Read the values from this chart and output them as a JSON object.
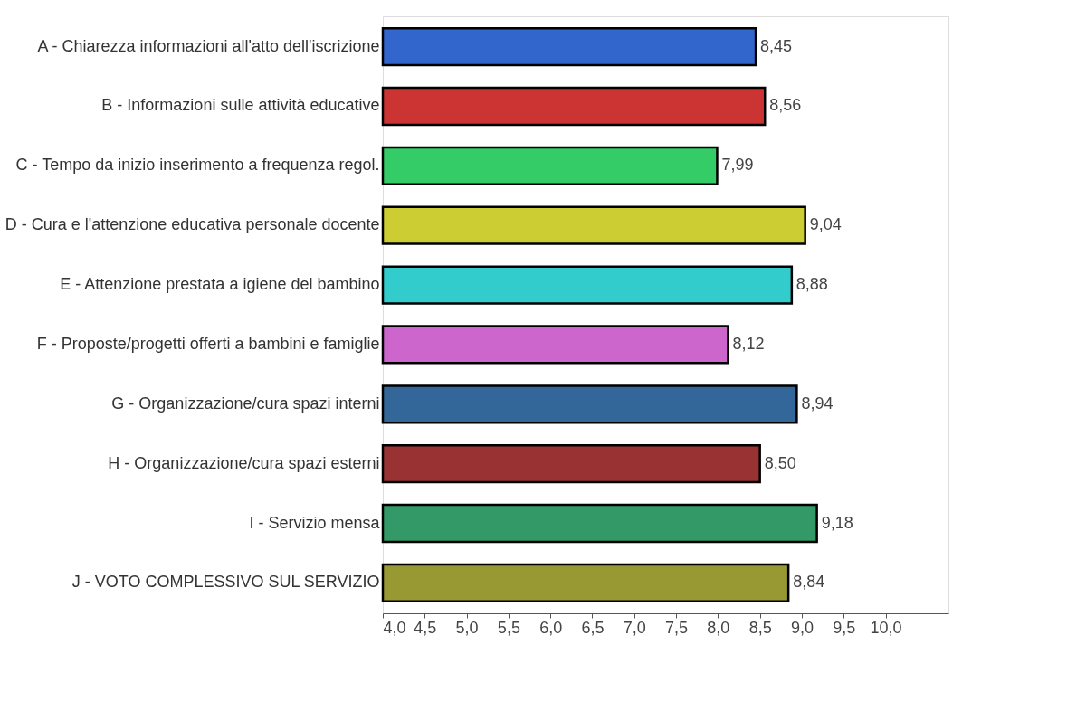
{
  "chart_data": {
    "type": "bar",
    "orientation": "horizontal",
    "categories": [
      "A - Chiarezza informazioni all'atto dell'iscrizione",
      "B - Informazioni sulle attività educative",
      "C - Tempo da inizio inserimento a frequenza regol.",
      "D - Cura e l'attenzione educativa personale docente",
      "E - Attenzione prestata a igiene del bambino",
      "F - Proposte/progetti offerti a bambini e famiglie",
      "G - Organizzazione/cura spazi interni",
      "H - Organizzazione/cura spazi esterni",
      "I - Servizio mensa",
      "J - VOTO COMPLESSIVO SUL SERVIZIO"
    ],
    "values": [
      8.45,
      8.56,
      7.99,
      9.04,
      8.88,
      8.12,
      8.94,
      8.5,
      9.18,
      8.84
    ],
    "value_labels": [
      "8,45",
      "8,56",
      "7,99",
      "9,04",
      "8,88",
      "8,12",
      "8,94",
      "8,50",
      "9,18",
      "8,84"
    ],
    "colors": [
      "#3366cc",
      "#cc3333",
      "#33cc66",
      "#cccc33",
      "#33cccc",
      "#cc66cc",
      "#336699",
      "#993333",
      "#339966",
      "#999933"
    ],
    "xlim": [
      4,
      10.75
    ],
    "xticks": [
      {
        "value": 4,
        "label": "4,0"
      },
      {
        "value": 4.5,
        "label": "4,5"
      },
      {
        "value": 5,
        "label": "5,0"
      },
      {
        "value": 5.5,
        "label": "5,5"
      },
      {
        "value": 6,
        "label": "6,0"
      },
      {
        "value": 6.5,
        "label": "6,5"
      },
      {
        "value": 7,
        "label": "7,0"
      },
      {
        "value": 7.5,
        "label": "7,5"
      },
      {
        "value": 8,
        "label": "8,0"
      },
      {
        "value": 8.5,
        "label": "8,5"
      },
      {
        "value": 9,
        "label": "9,0"
      },
      {
        "value": 9.5,
        "label": "9,5"
      },
      {
        "value": 10,
        "label": "10,0"
      }
    ],
    "grid": false,
    "legend": false
  }
}
